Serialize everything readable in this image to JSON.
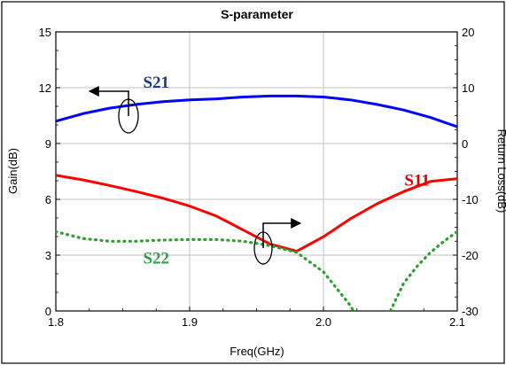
{
  "chart_data": {
    "type": "line",
    "title": "S-parameter",
    "xlabel": "Freq(GHz)",
    "ylabel_left": "Gain(dB)",
    "ylabel_right": "Return Loss(dB)",
    "xlim": [
      1.8,
      2.1
    ],
    "ylim_left": [
      0,
      15
    ],
    "ylim_right": [
      -30,
      20
    ],
    "x_ticks": [
      "1.8",
      "1.9",
      "2.0",
      "2.1"
    ],
    "y_left_ticks": [
      "0",
      "3",
      "6",
      "9",
      "12",
      "15"
    ],
    "y_right_ticks": [
      "-30",
      "-20",
      "-10",
      "0",
      "10",
      "20"
    ],
    "grid": true,
    "series": [
      {
        "name": "S21",
        "axis": "left",
        "color": "#0000ff",
        "label_color": "#1f3a8a",
        "style": "solid",
        "x": [
          1.8,
          1.82,
          1.84,
          1.86,
          1.88,
          1.9,
          1.92,
          1.94,
          1.96,
          1.98,
          2.0,
          2.02,
          2.04,
          2.06,
          2.08,
          2.1
        ],
        "y": [
          10.2,
          10.6,
          10.9,
          11.1,
          11.25,
          11.35,
          11.4,
          11.5,
          11.55,
          11.55,
          11.5,
          11.35,
          11.1,
          10.8,
          10.4,
          9.9
        ]
      },
      {
        "name": "S11",
        "axis": "right",
        "color": "#ff0000",
        "label_color": "#e00000",
        "style": "solid",
        "x": [
          1.8,
          1.82,
          1.84,
          1.86,
          1.88,
          1.9,
          1.92,
          1.94,
          1.96,
          1.98,
          2.0,
          2.02,
          2.04,
          2.06,
          2.08,
          2.1
        ],
        "y": [
          -5.7,
          -6.5,
          -7.5,
          -8.6,
          -9.8,
          -11.2,
          -13.0,
          -15.5,
          -18.0,
          -19.3,
          -16.7,
          -13.5,
          -10.8,
          -8.6,
          -6.8,
          -6.3
        ]
      },
      {
        "name": "S22",
        "axis": "right",
        "color": "#2ca02c",
        "label_color": "#2e9e4a",
        "style": "dotted",
        "x": [
          1.8,
          1.82,
          1.84,
          1.86,
          1.88,
          1.9,
          1.92,
          1.94,
          1.96,
          1.98,
          2.0,
          2.01,
          2.02,
          2.03,
          2.04,
          2.05,
          2.06,
          2.07,
          2.08,
          2.09,
          2.1
        ],
        "y": [
          -15.8,
          -17.0,
          -17.5,
          -17.5,
          -17.3,
          -17.2,
          -17.2,
          -17.5,
          -18.3,
          -19.5,
          -23.0,
          -26.0,
          -29.0,
          -33.0,
          -34.0,
          -30.0,
          -25.0,
          -22.0,
          -19.5,
          -17.5,
          -15.8
        ]
      }
    ],
    "annotations": [
      {
        "text": "S21",
        "series": "S21",
        "x": 1.875,
        "y_left": 12.0
      },
      {
        "text": "S11",
        "series": "S11",
        "x": 2.07,
        "y_right": -7.5
      },
      {
        "text": "S22",
        "series": "S22",
        "x": 1.875,
        "y_right": -21.5
      }
    ]
  }
}
